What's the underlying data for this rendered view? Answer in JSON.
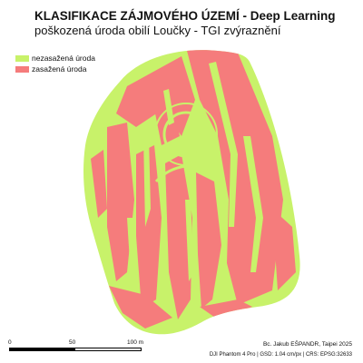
{
  "map": {
    "title": "KLASIFIKACE  ZÁJMOVÉHO ÚZEMÍ - Deep Learning",
    "subtitle": "poškozená úroda obilí Loučky - TGI zvýraznění",
    "colors": {
      "healthy": "#c8f26a",
      "damaged": "#f57c7c"
    }
  },
  "legend": {
    "items": [
      {
        "label": "nezasažená úroda",
        "color": "#c8f26a"
      },
      {
        "label": "zasažená úroda",
        "color": "#f57c7c"
      }
    ]
  },
  "scalebar": {
    "labels": [
      "0",
      "50",
      "100 m"
    ]
  },
  "footer": {
    "credit": "Bc. Jakub EŠPANDR, Taipei 2025",
    "meta": "DJI Phantom 4 Pro | GSD: 1.04 cm/px | CRS: EPSG:32633"
  }
}
